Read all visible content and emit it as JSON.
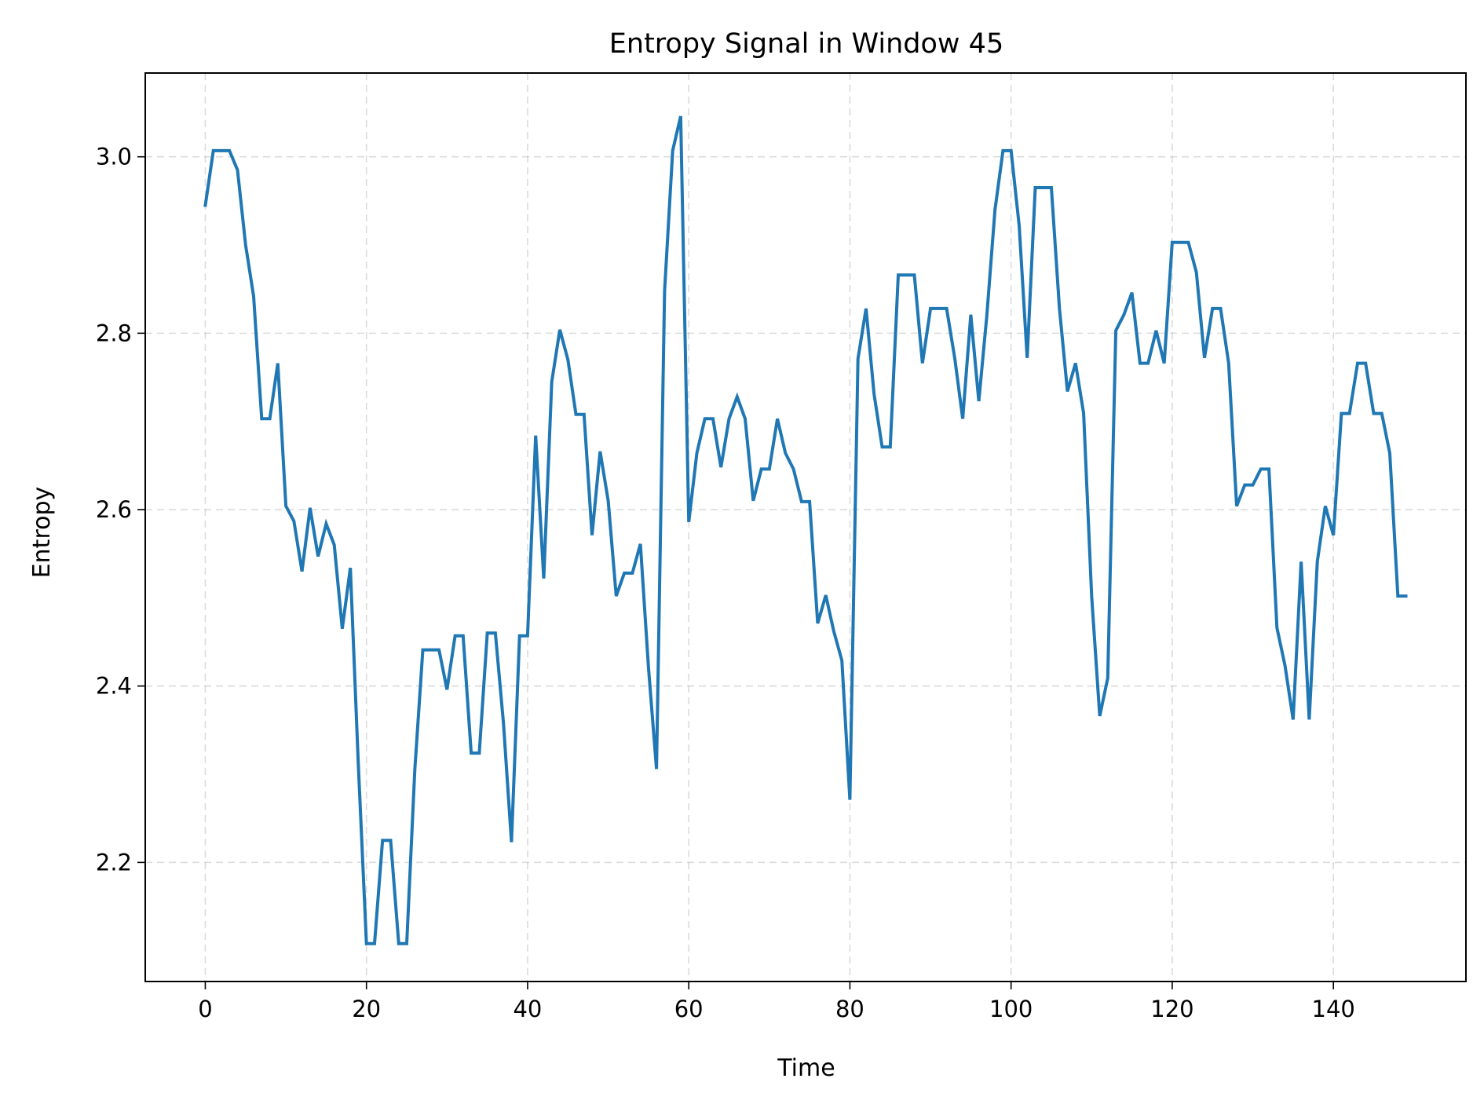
{
  "chart_data": {
    "type": "line",
    "title": "Entropy Signal in Window 45",
    "xlabel": "Time",
    "ylabel": "Entropy",
    "xlim": [
      -7.45,
      156.45
    ],
    "ylim": [
      2.065,
      3.095
    ],
    "xticks": [
      0,
      20,
      40,
      60,
      80,
      100,
      120,
      140
    ],
    "xtick_labels": [
      "0",
      "20",
      "40",
      "60",
      "80",
      "100",
      "120",
      "140"
    ],
    "yticks": [
      2.2,
      2.4,
      2.6,
      2.8,
      3.0
    ],
    "ytick_labels": [
      "2.2",
      "2.4",
      "2.6",
      "2.8",
      "3.0"
    ],
    "grid": true,
    "legend": "none",
    "series": [
      {
        "color": "#1f77b4",
        "x": [
          0,
          1,
          2,
          3,
          4,
          5,
          6,
          7,
          8,
          9,
          10,
          11,
          12,
          13,
          14,
          15,
          16,
          17,
          18,
          19,
          20,
          21,
          22,
          23,
          24,
          25,
          26,
          27,
          28,
          29,
          30,
          31,
          32,
          33,
          34,
          35,
          36,
          37,
          38,
          39,
          40,
          41,
          42,
          43,
          44,
          45,
          46,
          47,
          48,
          49,
          50,
          51,
          52,
          53,
          54,
          55,
          56,
          57,
          58,
          59,
          60,
          61,
          62,
          63,
          64,
          65,
          66,
          67,
          68,
          69,
          70,
          71,
          72,
          73,
          74,
          75,
          76,
          77,
          78,
          79,
          80,
          81,
          82,
          83,
          84,
          85,
          86,
          87,
          88,
          89,
          90,
          91,
          92,
          93,
          94,
          95,
          96,
          97,
          98,
          99,
          100,
          101,
          102,
          103,
          104,
          105,
          106,
          107,
          108,
          109,
          110,
          111,
          112,
          113,
          114,
          115,
          116,
          117,
          118,
          119,
          120,
          121,
          122,
          123,
          124,
          125,
          126,
          127,
          128,
          129,
          130,
          131,
          132,
          133,
          134,
          135,
          136,
          137,
          138,
          139,
          140,
          141,
          142,
          143,
          144,
          145,
          146,
          147,
          148,
          149
        ],
        "y": [
          2.945,
          3.007,
          3.007,
          3.007,
          2.985,
          2.9,
          2.842,
          2.703,
          2.703,
          2.766,
          2.604,
          2.587,
          2.53,
          2.602,
          2.547,
          2.584,
          2.56,
          2.465,
          2.534,
          2.31,
          2.108,
          2.108,
          2.225,
          2.225,
          2.108,
          2.108,
          2.305,
          2.441,
          2.441,
          2.441,
          2.396,
          2.457,
          2.457,
          2.324,
          2.324,
          2.46,
          2.46,
          2.358,
          2.223,
          2.457,
          2.457,
          2.684,
          2.522,
          2.745,
          2.804,
          2.77,
          2.708,
          2.708,
          2.571,
          2.666,
          2.61,
          2.502,
          2.528,
          2.528,
          2.561,
          2.421,
          2.306,
          2.848,
          3.007,
          3.046,
          2.586,
          2.664,
          2.703,
          2.703,
          2.648,
          2.703,
          2.728,
          2.703,
          2.61,
          2.646,
          2.646,
          2.703,
          2.664,
          2.646,
          2.609,
          2.609,
          2.471,
          2.503,
          2.462,
          2.429,
          2.271,
          2.771,
          2.828,
          2.731,
          2.671,
          2.671,
          2.866,
          2.866,
          2.866,
          2.766,
          2.828,
          2.828,
          2.828,
          2.772,
          2.703,
          2.821,
          2.723,
          2.821,
          2.94,
          3.007,
          3.007,
          2.922,
          2.772,
          2.965,
          2.965,
          2.965,
          2.828,
          2.734,
          2.766,
          2.709,
          2.502,
          2.366,
          2.409,
          2.803,
          2.821,
          2.846,
          2.766,
          2.766,
          2.803,
          2.766,
          2.903,
          2.903,
          2.903,
          2.869,
          2.772,
          2.828,
          2.828,
          2.766,
          2.604,
          2.628,
          2.628,
          2.646,
          2.646,
          2.466,
          2.423,
          2.362,
          2.541,
          2.362,
          2.541,
          2.604,
          2.571,
          2.709,
          2.709,
          2.766,
          2.766,
          2.709,
          2.709,
          2.664,
          2.502,
          2.502
        ]
      }
    ]
  }
}
